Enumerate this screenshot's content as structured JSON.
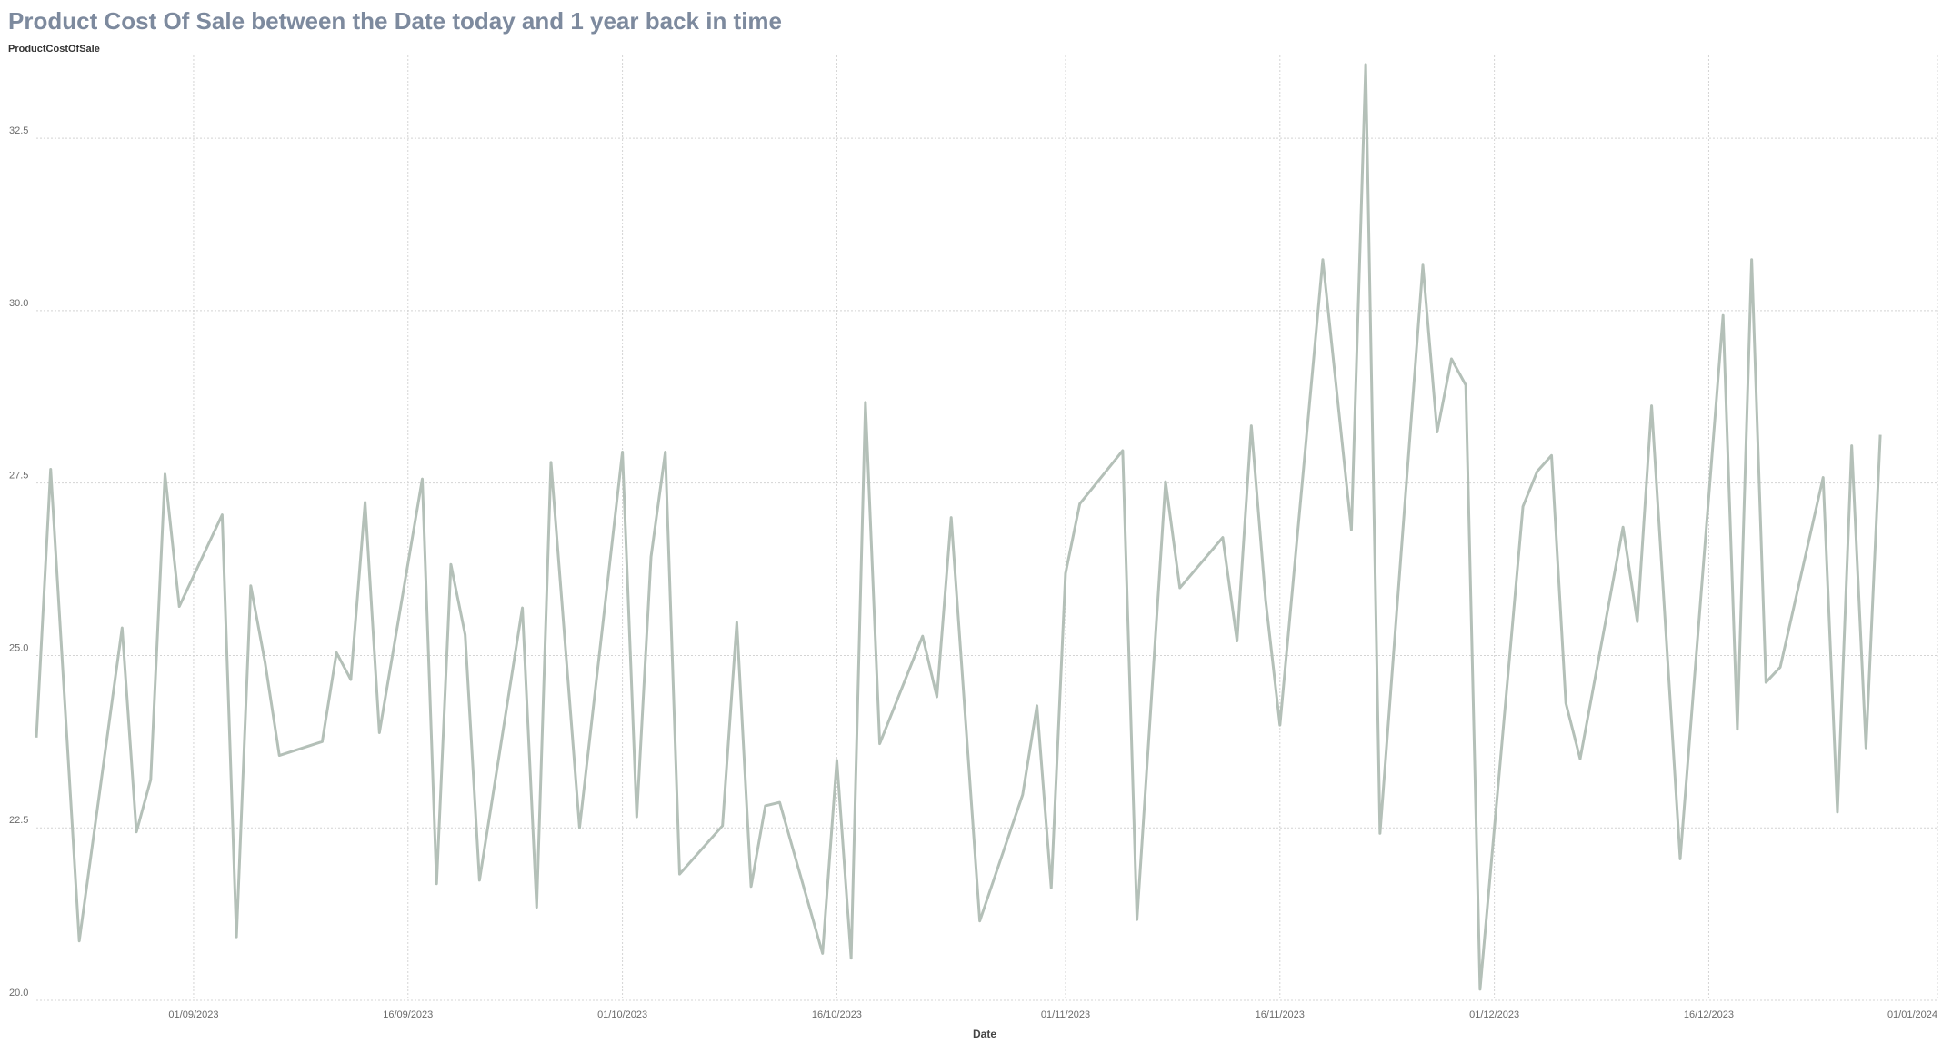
{
  "chart_data": {
    "type": "line",
    "title": "Product Cost Of Sale between the Date today and 1 year back in time",
    "y_label": "ProductCostOfSale",
    "x_label": "Date",
    "x": [
      "2023-08-21",
      "2023-08-22",
      "2023-08-24",
      "2023-08-27",
      "2023-08-28",
      "2023-08-29",
      "2023-08-30",
      "2023-08-31",
      "2023-09-03",
      "2023-09-04",
      "2023-09-05",
      "2023-09-06",
      "2023-09-07",
      "2023-09-10",
      "2023-09-11",
      "2023-09-12",
      "2023-09-13",
      "2023-09-14",
      "2023-09-17",
      "2023-09-18",
      "2023-09-19",
      "2023-09-20",
      "2023-09-21",
      "2023-09-24",
      "2023-09-25",
      "2023-09-26",
      "2023-09-28",
      "2023-10-01",
      "2023-10-02",
      "2023-10-03",
      "2023-10-04",
      "2023-10-05",
      "2023-10-08",
      "2023-10-09",
      "2023-10-10",
      "2023-10-11",
      "2023-10-12",
      "2023-10-15",
      "2023-10-16",
      "2023-10-17",
      "2023-10-18",
      "2023-10-19",
      "2023-10-22",
      "2023-10-23",
      "2023-10-24",
      "2023-10-26",
      "2023-10-29",
      "2023-10-30",
      "2023-10-31",
      "2023-11-01",
      "2023-11-02",
      "2023-11-05",
      "2023-11-06",
      "2023-11-08",
      "2023-11-09",
      "2023-11-12",
      "2023-11-13",
      "2023-11-14",
      "2023-11-15",
      "2023-11-16",
      "2023-11-19",
      "2023-11-21",
      "2023-11-22",
      "2023-11-23",
      "2023-11-26",
      "2023-11-27",
      "2023-11-28",
      "2023-11-29",
      "2023-11-30",
      "2023-12-03",
      "2023-12-04",
      "2023-12-05",
      "2023-12-06",
      "2023-12-07",
      "2023-12-10",
      "2023-12-11",
      "2023-12-12",
      "2023-12-14",
      "2023-12-17",
      "2023-12-18",
      "2023-12-19",
      "2023-12-20",
      "2023-12-21",
      "2023-12-24",
      "2023-12-25",
      "2023-12-26",
      "2023-12-27",
      "2023-12-28"
    ],
    "series": [
      {
        "name": "ProductCostOfSale",
        "color": "#b4c0b8",
        "values": [
          23.81,
          27.7,
          20.86,
          25.4,
          22.44,
          23.2,
          27.63,
          25.71,
          27.04,
          20.92,
          26.01,
          24.9,
          23.55,
          23.75,
          25.04,
          24.65,
          27.22,
          23.88,
          27.56,
          21.69,
          26.32,
          25.3,
          21.74,
          25.69,
          21.35,
          27.8,
          22.5,
          27.95,
          22.66,
          26.43,
          27.95,
          21.83,
          22.53,
          25.48,
          21.65,
          22.82,
          22.87,
          20.68,
          23.48,
          20.61,
          28.67,
          23.72,
          25.28,
          24.4,
          27.0,
          21.15,
          22.98,
          24.27,
          21.63,
          26.19,
          27.2,
          27.97,
          21.17,
          27.52,
          25.98,
          26.71,
          25.21,
          28.33,
          25.8,
          23.99,
          30.74,
          26.82,
          33.57,
          22.42,
          30.66,
          28.24,
          29.3,
          28.92,
          20.16,
          27.16,
          27.67,
          27.9,
          24.31,
          23.5,
          26.86,
          25.49,
          28.62,
          22.05,
          29.93,
          23.93,
          30.74,
          24.61,
          24.83,
          27.58,
          22.73,
          28.04,
          23.66,
          28.2
        ]
      }
    ],
    "xlim": [
      "2023-08-21",
      "2024-01-01"
    ],
    "xticks": [
      {
        "value": "2023-09-01",
        "label": "01/09/2023"
      },
      {
        "value": "2023-09-16",
        "label": "16/09/2023"
      },
      {
        "value": "2023-10-01",
        "label": "01/10/2023"
      },
      {
        "value": "2023-10-16",
        "label": "16/10/2023"
      },
      {
        "value": "2023-11-01",
        "label": "01/11/2023"
      },
      {
        "value": "2023-11-16",
        "label": "16/11/2023"
      },
      {
        "value": "2023-12-01",
        "label": "01/12/2023"
      },
      {
        "value": "2023-12-16",
        "label": "16/12/2023"
      },
      {
        "value": "2024-01-01",
        "label": "01/01/2024"
      }
    ],
    "ylim": [
      20,
      33.7
    ],
    "yticks": [
      {
        "value": 20,
        "label": "20.0"
      },
      22.5,
      {
        "value": 25,
        "label": "25.0"
      },
      27.5,
      {
        "value": 30,
        "label": "30.0"
      },
      32.5
    ],
    "grid": true
  }
}
